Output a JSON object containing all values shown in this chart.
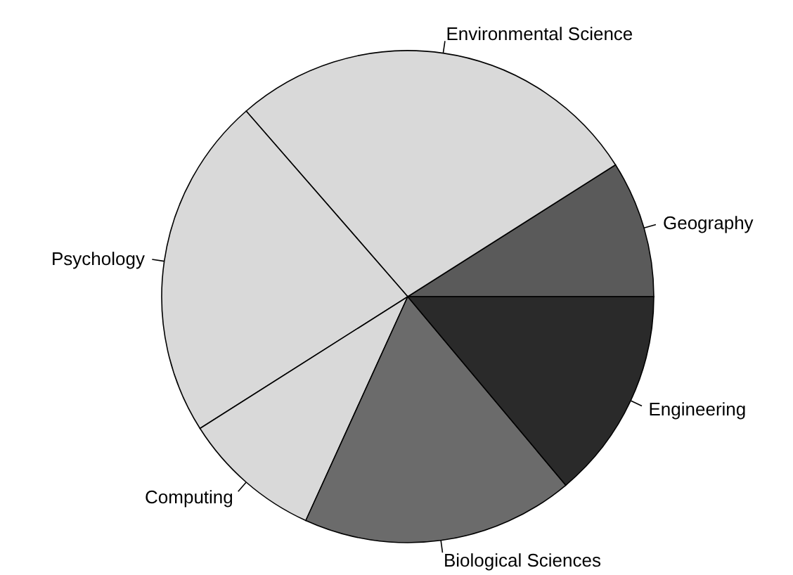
{
  "chart_data": {
    "type": "pie",
    "categories": [
      "Geography",
      "Environmental Science",
      "Psychology",
      "Computing",
      "Biological Sciences",
      "Engineering"
    ],
    "values": [
      9,
      27.4,
      22.6,
      9.2,
      17.9,
      13.9
    ],
    "colors": [
      "#5a5a5a",
      "#d9d9d9",
      "#d9d9d9",
      "#d9d9d9",
      "#6b6b6b",
      "#2a2a2a"
    ]
  }
}
